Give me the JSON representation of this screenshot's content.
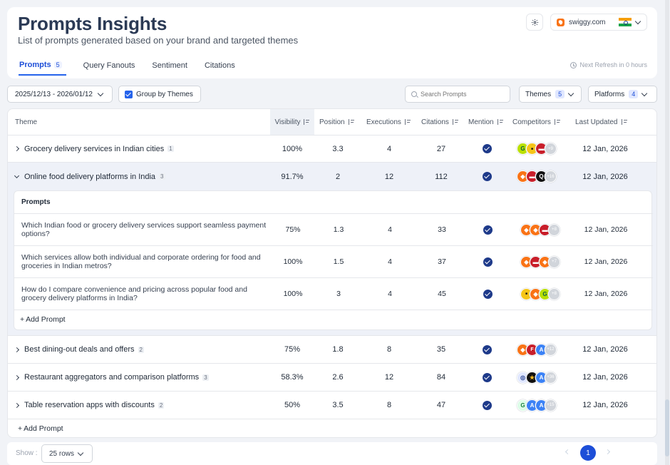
{
  "header": {
    "title": "Prompts Insights",
    "subtitle": "List of prompts generated based on your brand and targeted themes",
    "brand": "swiggy.com",
    "tabs": [
      {
        "label": "Prompts",
        "count": "5"
      },
      {
        "label": "Query Fanouts"
      },
      {
        "label": "Sentiment"
      },
      {
        "label": "Citations"
      }
    ],
    "next_refresh": "Next Refresh in 0 hours"
  },
  "toolbar": {
    "date_range": "2025/12/13 - 2026/01/12",
    "group_label": "Group by Themes",
    "search_placeholder": "Search Prompts",
    "themes_label": "Themes",
    "themes_count": "5",
    "platforms_label": "Platforms",
    "platforms_count": "4"
  },
  "table": {
    "columns": [
      "Theme",
      "Visibility",
      "Position",
      "Executions",
      "Citations",
      "Mention",
      "Competitors",
      "Last Updated"
    ],
    "rows": [
      {
        "theme": "Grocery delivery services in Indian cities",
        "count": "1",
        "visibility": "100%",
        "position": "3.3",
        "executions": "4",
        "citations": "27",
        "competitors_more": "+9",
        "updated": "12 Jan, 2026"
      },
      {
        "theme": "Online food delivery platforms in India",
        "count": "3",
        "visibility": "91.7%",
        "position": "2",
        "executions": "12",
        "citations": "112",
        "competitors_more": "+16",
        "updated": "12 Jan, 2026"
      },
      {
        "theme": "Best dining-out deals and offers",
        "count": "2",
        "visibility": "75%",
        "position": "1.8",
        "executions": "8",
        "citations": "35",
        "competitors_more": "+12",
        "updated": "12 Jan, 2026"
      },
      {
        "theme": "Restaurant aggregators and comparison platforms",
        "count": "3",
        "visibility": "58.3%",
        "position": "2.6",
        "executions": "12",
        "citations": "84",
        "competitors_more": "+36",
        "updated": "12 Jan, 2026"
      },
      {
        "theme": "Table reservation apps with discounts",
        "count": "2",
        "visibility": "50%",
        "position": "3.5",
        "executions": "8",
        "citations": "47",
        "competitors_more": "+15",
        "updated": "12 Jan, 2026"
      }
    ],
    "prompts_heading": "Prompts",
    "prompts": [
      {
        "text": "Which Indian food or grocery delivery services support seamless payment options?",
        "visibility": "75%",
        "position": "1.3",
        "executions": "4",
        "citations": "33",
        "competitors_more": "+8",
        "updated": "12 Jan, 2026"
      },
      {
        "text": "Which services allow both individual and corporate ordering for food and groceries in Indian metros?",
        "visibility": "100%",
        "position": "1.5",
        "executions": "4",
        "citations": "37",
        "competitors_more": "+7",
        "updated": "12 Jan, 2026"
      },
      {
        "text": "How do I compare convenience and pricing across popular food and grocery delivery platforms in India?",
        "visibility": "100%",
        "position": "3",
        "executions": "4",
        "citations": "45",
        "competitors_more": "+8",
        "updated": "12 Jan, 2026"
      }
    ],
    "add_prompt": "Add Prompt"
  },
  "footer": {
    "show_label": "Show :",
    "rows_option": "25 rows",
    "page": "1"
  },
  "colors": {
    "accent": "#1d4ed8",
    "check": "#1e3a8a",
    "expanded_row": "#eef1f8"
  }
}
